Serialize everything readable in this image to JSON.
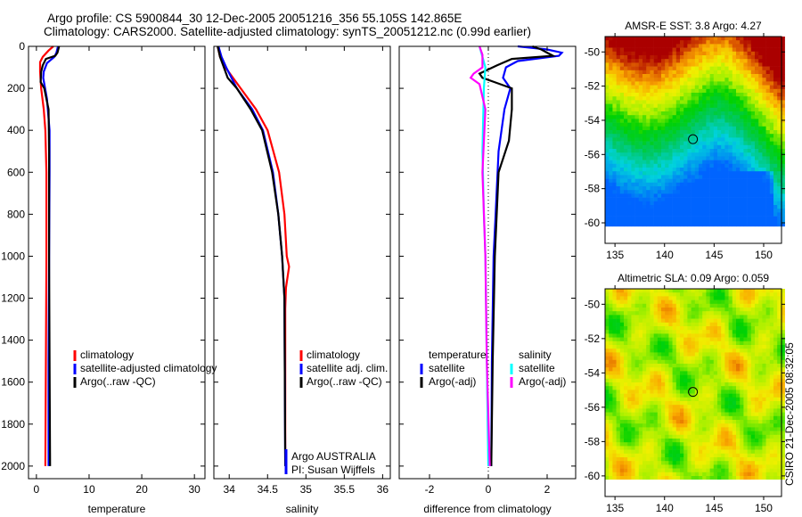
{
  "title_line1": "Argo profile: CS 5900844_30 12-Dec-2005 20051216_356 55.105S 142.865E",
  "title_line2": "Climatology: CARS2000. Satellite-adjusted climatology: synTS_20051212.nc (0.99d earlier)",
  "side_label": "CSIRO 21-Dec-2005 08:32:05",
  "colors": {
    "red": "#ff0000",
    "blue": "#0000ff",
    "black": "#000000",
    "cyan": "#00ffff",
    "magenta": "#ff00ff"
  },
  "chart_data": [
    {
      "type": "line",
      "id": "temperature",
      "xlabel": "temperature",
      "xlim": [
        -1.5,
        32
      ],
      "ylim": [
        2060,
        0
      ],
      "xticks": [
        0,
        10,
        20,
        30
      ],
      "yticks": [
        0,
        200,
        400,
        600,
        800,
        1000,
        1200,
        1400,
        1600,
        1800,
        2000
      ],
      "legend": [
        "climatology",
        "satellite-adjusted climatology",
        "Argo(..raw -QC)"
      ],
      "series": [
        {
          "name": "climatology",
          "color": "red",
          "depth": [
            0,
            20,
            50,
            75,
            120,
            200,
            300,
            400,
            600,
            1000,
            1500,
            2000
          ],
          "values": [
            3.2,
            2.3,
            1.2,
            0.7,
            0.7,
            0.9,
            1.4,
            1.7,
            1.9,
            1.9,
            1.8,
            1.7
          ]
        },
        {
          "name": "satellite-adjusted climatology",
          "color": "blue",
          "depth": [
            0,
            30,
            50,
            80,
            120,
            150,
            250,
            400,
            600,
            1000,
            1500,
            2000
          ],
          "values": [
            4.1,
            3.8,
            3.4,
            2.0,
            1.4,
            1.3,
            2.0,
            2.5,
            2.5,
            2.4,
            2.3,
            2.3
          ]
        },
        {
          "name": "Argo(..raw -QC)",
          "color": "black",
          "depth": [
            0,
            30,
            45,
            60,
            90,
            120,
            170,
            200,
            300,
            500,
            1000,
            1500,
            2000
          ],
          "values": [
            4.3,
            4.0,
            3.6,
            1.8,
            1.2,
            0.9,
            0.8,
            1.5,
            2.3,
            2.4,
            2.4,
            2.5,
            2.6
          ]
        }
      ]
    },
    {
      "type": "line",
      "id": "salinity",
      "xlabel": "salinity",
      "xlim": [
        33.8,
        36.1
      ],
      "ylim": [
        2060,
        0
      ],
      "xticks": [
        34,
        34.5,
        35,
        35.5,
        36
      ],
      "legend": [
        "climatology",
        "satellite adj. clim.",
        "Argo(..raw -QC)"
      ],
      "annotation": [
        "Argo AUSTRALIA",
        "PI: Susan Wijffels"
      ],
      "series": [
        {
          "name": "climatology",
          "color": "red",
          "depth": [
            0,
            50,
            100,
            200,
            300,
            400,
            600,
            800,
            1000,
            1050,
            1150,
            1250,
            2000
          ],
          "values": [
            33.85,
            33.88,
            33.95,
            34.15,
            34.35,
            34.5,
            34.65,
            34.72,
            34.75,
            34.78,
            34.74,
            34.73,
            34.73
          ]
        },
        {
          "name": "satellite adj. clim.",
          "color": "blue",
          "depth": [
            0,
            50,
            100,
            200,
            300,
            400,
            600,
            800,
            1000,
            1200,
            2000
          ],
          "values": [
            33.86,
            33.9,
            33.96,
            34.1,
            34.3,
            34.44,
            34.57,
            34.64,
            34.69,
            34.72,
            34.73
          ]
        },
        {
          "name": "Argo(..raw -QC)",
          "color": "black",
          "depth": [
            0,
            50,
            100,
            150,
            200,
            300,
            400,
            600,
            800,
            1000,
            1200,
            2000
          ],
          "values": [
            33.85,
            33.88,
            33.93,
            33.98,
            34.1,
            34.28,
            34.43,
            34.56,
            34.64,
            34.69,
            34.72,
            34.73
          ]
        }
      ]
    },
    {
      "type": "line",
      "id": "difference",
      "xlabel": "difference from climatology",
      "xlim": [
        -3.03,
        2.97
      ],
      "ylim": [
        2060,
        0
      ],
      "xticks": [
        -2,
        0,
        2
      ],
      "legend_headers": [
        "temperature",
        "salinity"
      ],
      "legend": [
        "satellite",
        "Argo(-adj)",
        "satellite",
        "Argo(-adj)"
      ],
      "series": [
        {
          "name": "temperature satellite",
          "color": "blue",
          "depth": [
            0,
            15,
            30,
            45,
            70,
            100,
            150,
            200,
            300,
            500,
            800,
            1000,
            1500,
            2000
          ],
          "values": [
            1.0,
            2.0,
            2.5,
            2.4,
            1.0,
            0.6,
            0.5,
            0.75,
            0.55,
            0.35,
            0.25,
            0.18,
            0.12,
            0.1
          ]
        },
        {
          "name": "temperature Argo(-adj)",
          "color": "black",
          "depth": [
            0,
            15,
            30,
            45,
            60,
            90,
            130,
            150,
            170,
            200,
            300,
            450,
            600,
            1000,
            1500,
            2000
          ],
          "values": [
            1.5,
            1.8,
            2.0,
            2.2,
            0.8,
            0.3,
            -0.3,
            -0.2,
            0.2,
            0.8,
            0.8,
            0.7,
            0.35,
            0.22,
            0.15,
            0.1
          ]
        },
        {
          "name": "salinity satellite",
          "color": "cyan",
          "depth": [
            0,
            50,
            100,
            200,
            500,
            800,
            1000,
            1500,
            2000
          ],
          "values": [
            -0.3,
            -0.2,
            -0.1,
            -0.15,
            -0.2,
            -0.15,
            -0.1,
            -0.05,
            0
          ]
        },
        {
          "name": "salinity Argo(-adj)",
          "color": "magenta",
          "depth": [
            0,
            40,
            100,
            130,
            150,
            180,
            300,
            600,
            1000,
            1500,
            2000
          ],
          "values": [
            -0.3,
            -0.2,
            -0.2,
            -0.5,
            -0.6,
            -0.3,
            -0.1,
            -0.2,
            -0.1,
            -0.05,
            0.05
          ]
        }
      ]
    },
    {
      "type": "heatmap",
      "id": "sst-map",
      "title": "AMSR-E SST: 3.8 Argo: 4.27",
      "xlim": [
        134,
        151.8
      ],
      "ylim": [
        -61.2,
        -49.1
      ],
      "xticks": [
        135,
        140,
        145,
        150
      ],
      "yticks": [
        -50,
        -52,
        -54,
        -56,
        -58,
        -60
      ],
      "marker": {
        "lon": 142.865,
        "lat": -55.105
      }
    },
    {
      "type": "heatmap",
      "id": "sla-map",
      "title": "Altimetric SLA: 0.09 Argo: 0.059",
      "xlim": [
        134,
        151.8
      ],
      "ylim": [
        -61.2,
        -49.1
      ],
      "xticks": [
        135,
        140,
        145,
        150
      ],
      "yticks": [
        -50,
        -52,
        -54,
        -56,
        -58,
        -60
      ],
      "marker": {
        "lon": 142.865,
        "lat": -55.105
      }
    }
  ]
}
